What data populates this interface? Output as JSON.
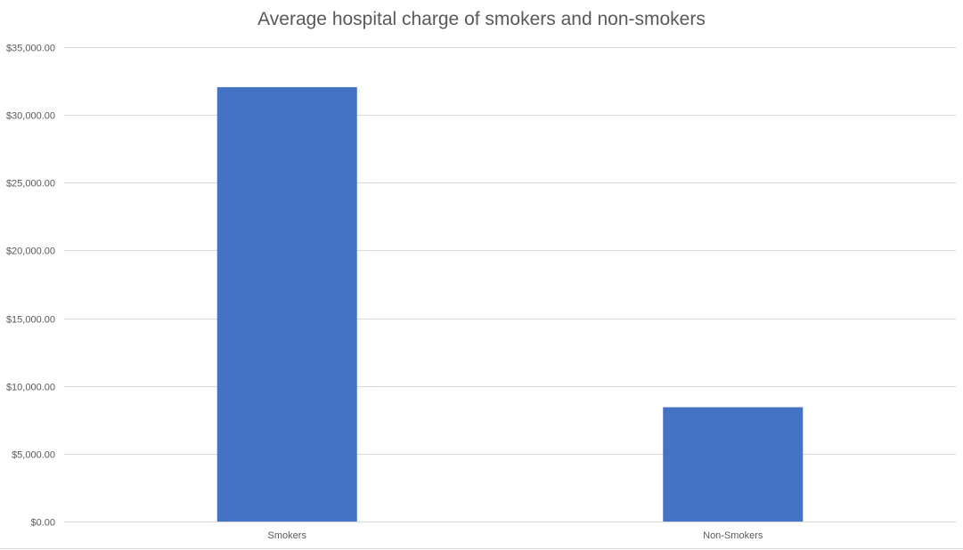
{
  "chart_data": {
    "type": "bar",
    "title": "Average hospital charge of smokers and non-smokers",
    "xlabel": "",
    "ylabel": "",
    "categories": [
      "Smokers",
      "Non-Smokers"
    ],
    "values": [
      32050,
      8434
    ],
    "ylim": [
      0,
      35000
    ],
    "y_ticks": [
      0,
      5000,
      10000,
      15000,
      20000,
      25000,
      30000,
      35000
    ],
    "y_tick_labels": [
      "$0.00",
      "$5,000.00",
      "$10,000.00",
      "$15,000.00",
      "$20,000.00",
      "$25,000.00",
      "$30,000.00",
      "$35,000.00"
    ],
    "grid": true,
    "legend": "none",
    "bar_color": "#4472C4",
    "grid_color": "#D9D9D9"
  }
}
